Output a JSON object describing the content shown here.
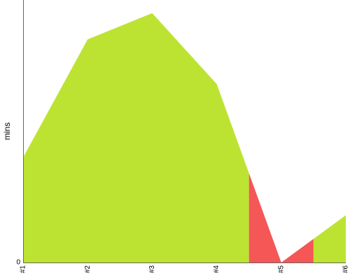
{
  "chart_data": {
    "type": "area",
    "categories": [
      "#1",
      "#2",
      "#3",
      "#4",
      "#5",
      "#6"
    ],
    "values": [
      4.0,
      8.5,
      9.5,
      6.8,
      0,
      1.8
    ],
    "ylabel": "mins",
    "y_ticks": [
      "0"
    ],
    "ylim": [
      0,
      10
    ],
    "grid": false,
    "colors": {
      "above": "#bde332",
      "below": "#f55656"
    },
    "highlighted_segment": {
      "from_category": "#4",
      "to_category": "#6",
      "x_from": 3.5,
      "x_to": 4.5,
      "color": "#f55656"
    }
  }
}
